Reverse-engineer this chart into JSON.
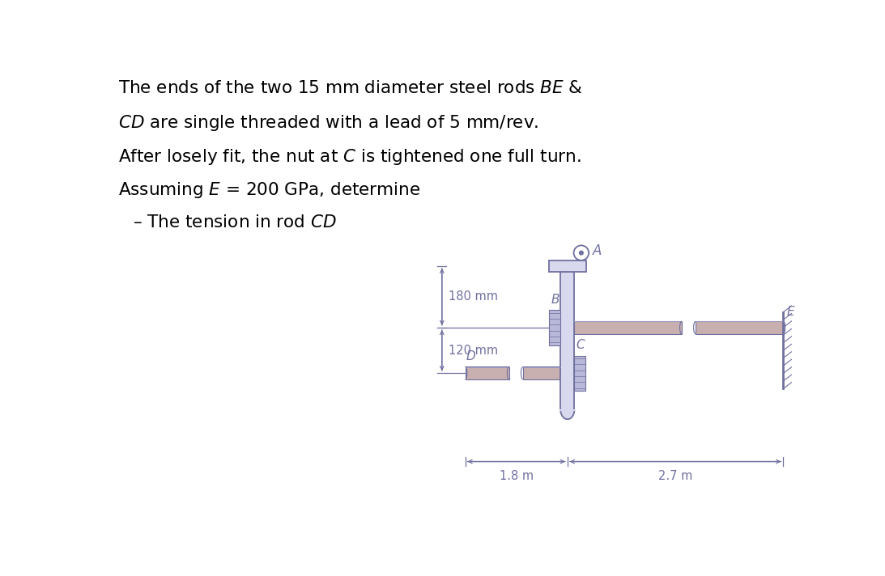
{
  "bg_color": "#ffffff",
  "text_color": "#000000",
  "diagram_color": "#7070a0",
  "rod_fill": "#c8b0b0",
  "rod_edge": "#7070a0",
  "bar_fill": "#d8d8ee",
  "bar_edge": "#7070a0",
  "title_lines": [
    "The ends of the two 15 mm diameter steel rods $\\it{BE}$ &",
    "$\\it{CD}$ are single threaded with a lead of 5 mm/rev.",
    "After losely fit, the nut at $\\it{C}$ is tightened one full turn.",
    "Assuming $\\it{E}$ = 200 GPa, determine"
  ],
  "bullet": "– The tension in rod $\\it{CD}$",
  "dim_180": "180 mm",
  "dim_120": "120 mm",
  "dim_18": "1.8 m",
  "dim_27": "2.7 m",
  "label_A": "A",
  "label_B": "B",
  "label_C": "C",
  "label_D": "D",
  "label_E": "E",
  "fig_width": 10.93,
  "fig_height": 7.12,
  "dpi": 100
}
